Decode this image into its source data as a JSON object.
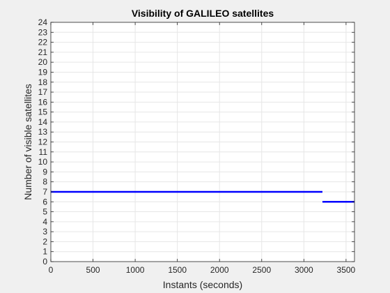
{
  "chart_data": {
    "type": "line",
    "title": "Visibility of GALILEO satellites",
    "xlabel": "Instants (seconds)",
    "ylabel": "Number of visible satellites",
    "xlim": [
      0,
      3600
    ],
    "ylim": [
      0,
      24
    ],
    "xticks": [
      0,
      500,
      1000,
      1500,
      2000,
      2500,
      3000,
      3500
    ],
    "yticks": [
      0,
      1,
      2,
      3,
      4,
      5,
      6,
      7,
      8,
      9,
      10,
      11,
      12,
      13,
      14,
      15,
      16,
      17,
      18,
      19,
      20,
      21,
      22,
      23,
      24
    ],
    "grid": true,
    "series": [
      {
        "color": "#0000ff",
        "segments": [
          {
            "x": [
              0,
              3220
            ],
            "y": [
              7,
              7
            ]
          },
          {
            "x": [
              3220,
              3600
            ],
            "y": [
              6,
              6
            ]
          }
        ]
      }
    ]
  },
  "colors": {
    "figure_bg": "#f0f0f0",
    "axes_bg": "#ffffff",
    "grid": "#e6e6e6",
    "axis": "#262626",
    "series": "#0000ff"
  }
}
